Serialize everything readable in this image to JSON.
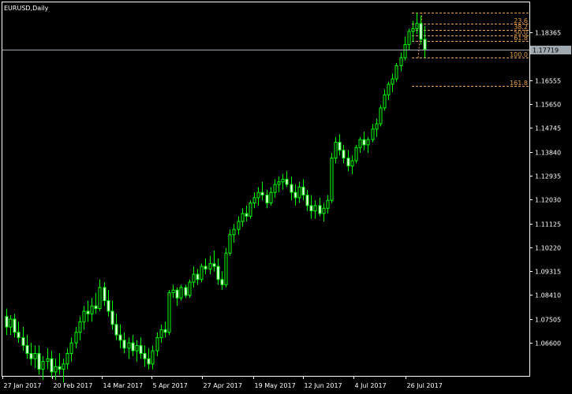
{
  "window": {
    "title": "EURUSD,Daily"
  },
  "chart_data": {
    "type": "candlestick",
    "symbol": "EURUSD",
    "timeframe": "Daily",
    "ylim": [
      1.0535,
      1.195
    ],
    "y_ticks": [
      "1.18365",
      "1.17460",
      "1.16555",
      "1.15650",
      "1.14745",
      "1.13840",
      "1.12935",
      "1.12030",
      "1.11125",
      "1.10220",
      "1.09315",
      "1.08410",
      "1.07505",
      "1.06600"
    ],
    "x_ticks": [
      "27 Jan 2017",
      "20 Feb 2017",
      "14 Mar 2017",
      "5 Apr 2017",
      "27 Apr 2017",
      "19 May 2017",
      "12 Jun 2017",
      "4 Jul 2017",
      "26 Jul 2017"
    ],
    "current_price": {
      "label": "1.17719",
      "value": 1.17719
    },
    "fibonacci": {
      "top_price": 1.191,
      "bottom_price": 1.174,
      "levels": [
        {
          "label": "0.0",
          "ratio": 0.0
        },
        {
          "label": "23.6",
          "ratio": 0.236
        },
        {
          "label": "38.2",
          "ratio": 0.382
        },
        {
          "label": "50.0",
          "ratio": 0.5
        },
        {
          "label": "61.8",
          "ratio": 0.618
        },
        {
          "label": "100.0",
          "ratio": 1.0
        },
        {
          "label": "161.8",
          "ratio": 1.618
        }
      ]
    },
    "series": [
      {
        "ohlc": [
          [
            1.076,
            1.079,
            1.069,
            1.072
          ],
          [
            1.072,
            1.0765,
            1.069,
            1.075
          ],
          [
            1.075,
            1.077,
            1.068,
            1.07
          ],
          [
            1.07,
            1.074,
            1.066,
            1.068
          ],
          [
            1.068,
            1.072,
            1.063,
            1.065
          ],
          [
            1.065,
            1.069,
            1.06,
            1.062
          ],
          [
            1.062,
            1.066,
            1.0575,
            1.06
          ],
          [
            1.06,
            1.065,
            1.0565,
            1.062
          ],
          [
            1.062,
            1.065,
            1.054,
            1.056
          ],
          [
            1.056,
            1.061,
            1.052,
            1.059
          ],
          [
            1.059,
            1.064,
            1.056,
            1.06
          ],
          [
            1.06,
            1.063,
            1.053,
            1.055
          ],
          [
            1.055,
            1.06,
            1.052,
            1.057
          ],
          [
            1.057,
            1.062,
            1.054,
            1.056
          ],
          [
            1.056,
            1.06,
            1.051,
            1.058
          ],
          [
            1.058,
            1.064,
            1.056,
            1.062
          ],
          [
            1.062,
            1.068,
            1.059,
            1.066
          ],
          [
            1.066,
            1.072,
            1.064,
            1.07
          ],
          [
            1.07,
            1.076,
            1.067,
            1.074
          ],
          [
            1.074,
            1.08,
            1.071,
            1.078
          ],
          [
            1.078,
            1.082,
            1.074,
            1.077
          ],
          [
            1.077,
            1.083,
            1.074,
            1.08
          ],
          [
            1.08,
            1.085,
            1.077,
            1.079
          ],
          [
            1.079,
            1.09,
            1.078,
            1.087
          ],
          [
            1.087,
            1.089,
            1.08,
            1.082
          ],
          [
            1.082,
            1.086,
            1.076,
            1.078
          ],
          [
            1.078,
            1.082,
            1.071,
            1.073
          ],
          [
            1.073,
            1.077,
            1.067,
            1.069
          ],
          [
            1.069,
            1.073,
            1.064,
            1.067
          ],
          [
            1.067,
            1.07,
            1.062,
            1.064
          ],
          [
            1.064,
            1.068,
            1.06,
            1.066
          ],
          [
            1.066,
            1.069,
            1.061,
            1.063
          ],
          [
            1.063,
            1.067,
            1.059,
            1.065
          ],
          [
            1.065,
            1.068,
            1.06,
            1.062
          ],
          [
            1.062,
            1.065,
            1.057,
            1.06
          ],
          [
            1.06,
            1.064,
            1.056,
            1.058
          ],
          [
            1.058,
            1.065,
            1.056,
            1.063
          ],
          [
            1.063,
            1.07,
            1.061,
            1.068
          ],
          [
            1.068,
            1.073,
            1.066,
            1.071
          ],
          [
            1.071,
            1.074,
            1.068,
            1.07
          ],
          [
            1.07,
            1.086,
            1.069,
            1.085
          ],
          [
            1.085,
            1.088,
            1.083,
            1.086
          ],
          [
            1.086,
            1.087,
            1.08,
            1.083
          ],
          [
            1.083,
            1.088,
            1.082,
            1.087
          ],
          [
            1.087,
            1.088,
            1.083,
            1.084
          ],
          [
            1.084,
            1.09,
            1.083,
            1.089
          ],
          [
            1.089,
            1.095,
            1.087,
            1.092
          ],
          [
            1.092,
            1.094,
            1.088,
            1.09
          ],
          [
            1.09,
            1.096,
            1.089,
            1.095
          ],
          [
            1.095,
            1.098,
            1.092,
            1.094
          ],
          [
            1.094,
            1.099,
            1.092,
            1.096
          ],
          [
            1.096,
            1.101,
            1.093,
            1.095
          ],
          [
            1.095,
            1.098,
            1.088,
            1.09
          ],
          [
            1.09,
            1.093,
            1.086,
            1.088
          ],
          [
            1.088,
            1.102,
            1.087,
            1.1
          ],
          [
            1.1,
            1.109,
            1.099,
            1.107
          ],
          [
            1.107,
            1.111,
            1.104,
            1.109
          ],
          [
            1.109,
            1.114,
            1.107,
            1.112
          ],
          [
            1.112,
            1.117,
            1.11,
            1.115
          ],
          [
            1.115,
            1.118,
            1.112,
            1.114
          ],
          [
            1.114,
            1.12,
            1.113,
            1.119
          ],
          [
            1.119,
            1.123,
            1.117,
            1.121
          ],
          [
            1.121,
            1.125,
            1.118,
            1.123
          ],
          [
            1.123,
            1.127,
            1.12,
            1.122
          ],
          [
            1.122,
            1.124,
            1.117,
            1.119
          ],
          [
            1.119,
            1.125,
            1.118,
            1.123
          ],
          [
            1.123,
            1.128,
            1.121,
            1.126
          ],
          [
            1.126,
            1.129,
            1.123,
            1.127
          ],
          [
            1.127,
            1.13,
            1.124,
            1.128
          ],
          [
            1.128,
            1.131,
            1.125,
            1.126
          ],
          [
            1.126,
            1.129,
            1.12,
            1.123
          ],
          [
            1.123,
            1.126,
            1.118,
            1.121
          ],
          [
            1.121,
            1.127,
            1.119,
            1.125
          ],
          [
            1.125,
            1.128,
            1.12,
            1.122
          ],
          [
            1.122,
            1.124,
            1.116,
            1.118
          ],
          [
            1.118,
            1.122,
            1.113,
            1.116
          ],
          [
            1.116,
            1.12,
            1.113,
            1.118
          ],
          [
            1.118,
            1.121,
            1.114,
            1.115
          ],
          [
            1.115,
            1.119,
            1.112,
            1.117
          ],
          [
            1.117,
            1.122,
            1.115,
            1.12
          ],
          [
            1.12,
            1.138,
            1.119,
            1.136
          ],
          [
            1.136,
            1.144,
            1.134,
            1.142
          ],
          [
            1.142,
            1.145,
            1.137,
            1.139
          ],
          [
            1.139,
            1.141,
            1.134,
            1.136
          ],
          [
            1.136,
            1.139,
            1.131,
            1.133
          ],
          [
            1.133,
            1.137,
            1.13,
            1.135
          ],
          [
            1.135,
            1.141,
            1.134,
            1.14
          ],
          [
            1.14,
            1.144,
            1.138,
            1.143
          ],
          [
            1.143,
            1.146,
            1.139,
            1.141
          ],
          [
            1.141,
            1.144,
            1.138,
            1.143
          ],
          [
            1.143,
            1.149,
            1.142,
            1.147
          ],
          [
            1.147,
            1.151,
            1.144,
            1.149
          ],
          [
            1.149,
            1.156,
            1.148,
            1.155
          ],
          [
            1.155,
            1.162,
            1.154,
            1.16
          ],
          [
            1.16,
            1.165,
            1.158,
            1.164
          ],
          [
            1.164,
            1.168,
            1.161,
            1.166
          ],
          [
            1.166,
            1.172,
            1.165,
            1.171
          ],
          [
            1.171,
            1.176,
            1.169,
            1.174
          ],
          [
            1.174,
            1.182,
            1.173,
            1.179
          ],
          [
            1.179,
            1.185,
            1.177,
            1.184
          ],
          [
            1.184,
            1.188,
            1.18,
            1.185
          ],
          [
            1.185,
            1.191,
            1.183,
            1.187
          ],
          [
            1.187,
            1.19,
            1.179,
            1.181
          ],
          [
            1.181,
            1.186,
            1.174,
            1.1772
          ]
        ]
      }
    ]
  }
}
